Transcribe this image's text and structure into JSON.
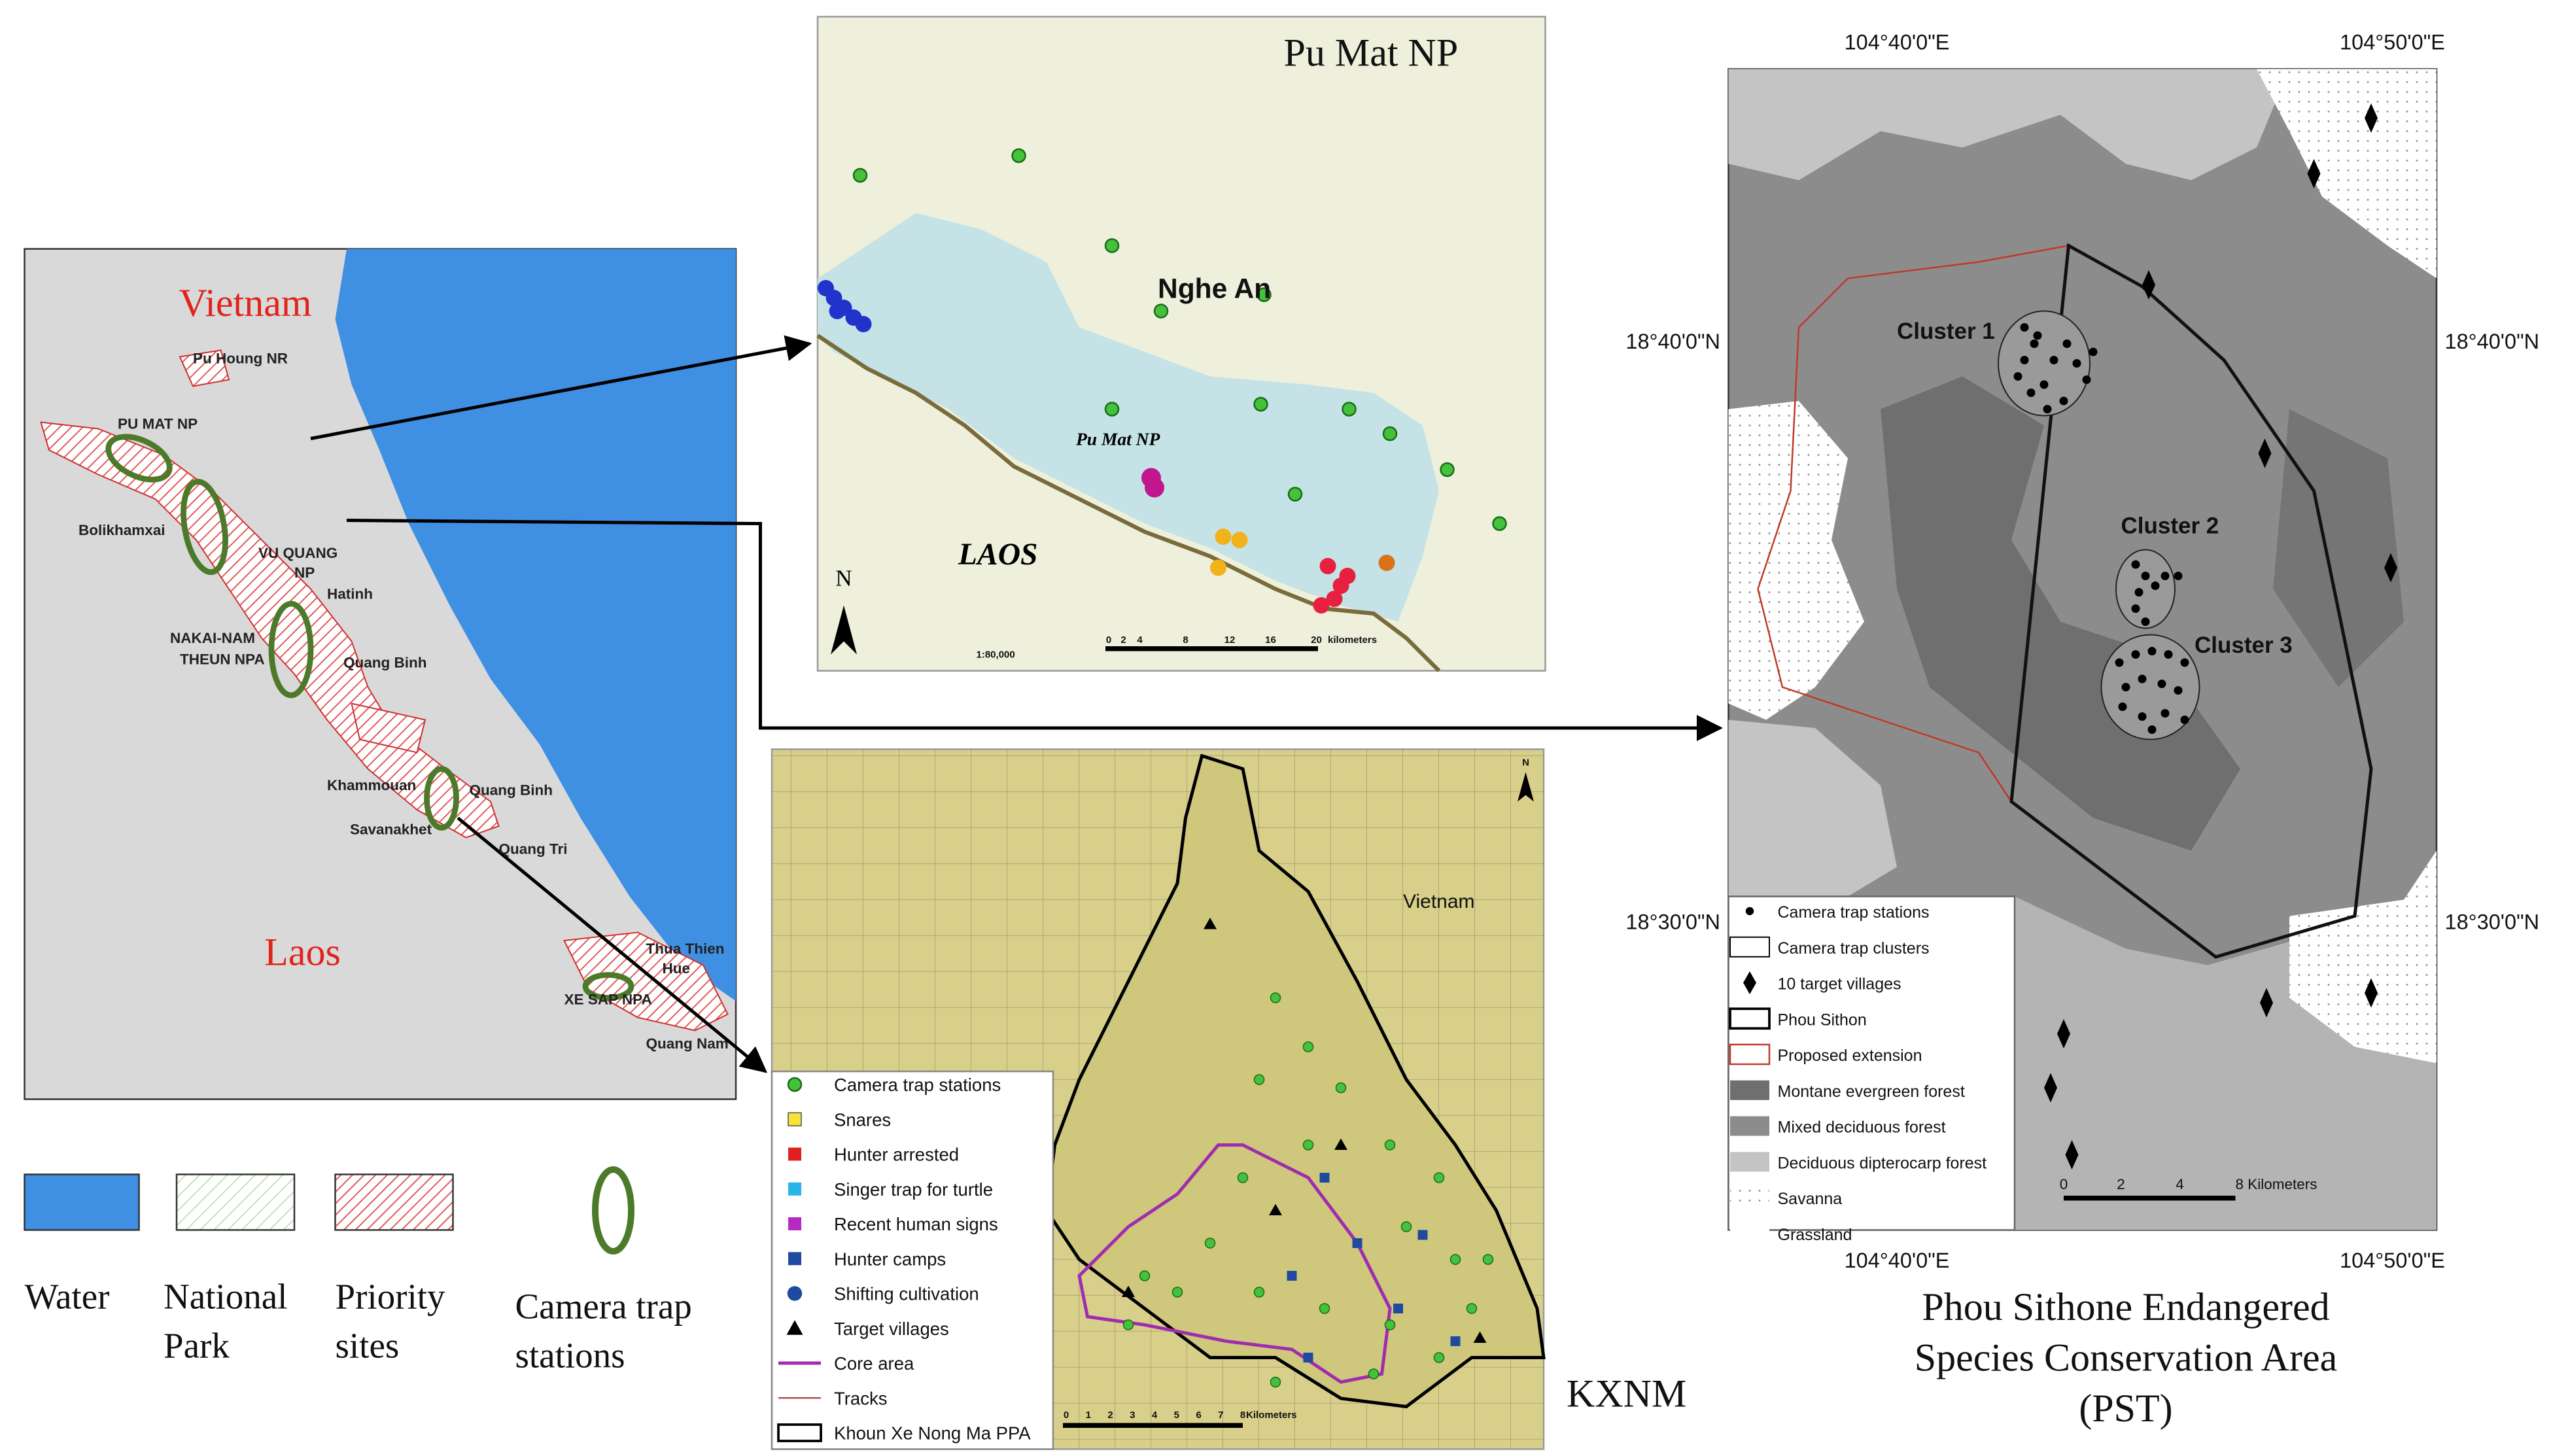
{
  "left_map": {
    "labels": [
      "Vietnam",
      "Laos",
      "Pu Houng NR",
      "PU MAT NP",
      "Bolikhamxai",
      "VU QUANG",
      "NP",
      "Hatinh",
      "NAKAI-NAM",
      "THEUN NPA",
      "Quang Binh",
      "Khammouan",
      "Quang Binh",
      "Savanakhet",
      "Quang Tri",
      "Thua Thien",
      "Hue",
      "XE SAP NPA",
      "Quang Nam"
    ]
  },
  "left_legend": {
    "items": [
      {
        "lines": [
          "Water"
        ]
      },
      {
        "lines": [
          "National",
          "Park"
        ]
      },
      {
        "lines": [
          "Priority",
          "sites"
        ]
      },
      {
        "lines": [
          "Camera trap",
          "stations"
        ]
      }
    ]
  },
  "pu_mat_map": {
    "title": "Pu Mat NP",
    "province": "Nghe An",
    "park_label": "Pu Mat NP",
    "country": "LAOS",
    "north": "N",
    "scale_ratio": "1:80,000",
    "scale_labels": [
      "0",
      "2",
      "4",
      "8",
      "12",
      "16",
      "20",
      "kilometers"
    ]
  },
  "kxnm_map": {
    "country": "Vietnam",
    "north": "N",
    "legend": [
      "Camera trap stations",
      "Snares",
      "Hunter arrested",
      "Singer trap for turtle",
      "Recent human signs",
      "Hunter camps",
      "Shifting cultivation",
      "Target villages",
      "Core area",
      "Tracks",
      "Khoun Xe Nong Ma PPA"
    ],
    "scale_labels": [
      "0",
      "1",
      "2",
      "3",
      "4",
      "5",
      "6",
      "7",
      "8",
      "Kilometers"
    ],
    "caption": "KXNM"
  },
  "pst_map": {
    "lon_labels": [
      "104°40'0\"E",
      "104°50'0\"E"
    ],
    "lat_labels": [
      "18°40'0\"N",
      "18°30'0\"N"
    ],
    "clusters": [
      "Cluster 1",
      "Cluster 2",
      "Cluster 3"
    ],
    "legend": [
      "Camera trap stations",
      "Camera trap clusters",
      "10 target villages",
      "Phou Sithon",
      "Proposed extension",
      "Montane evergreen forest",
      "Mixed deciduous forest",
      "Deciduous dipterocarp forest",
      "Savanna",
      "Grassland"
    ],
    "scale_labels": [
      "0",
      "2",
      "4",
      "8 Kilometers"
    ],
    "caption": [
      "Phou Sithone Endangered",
      "Species Conservation Area",
      "(PST)"
    ]
  }
}
